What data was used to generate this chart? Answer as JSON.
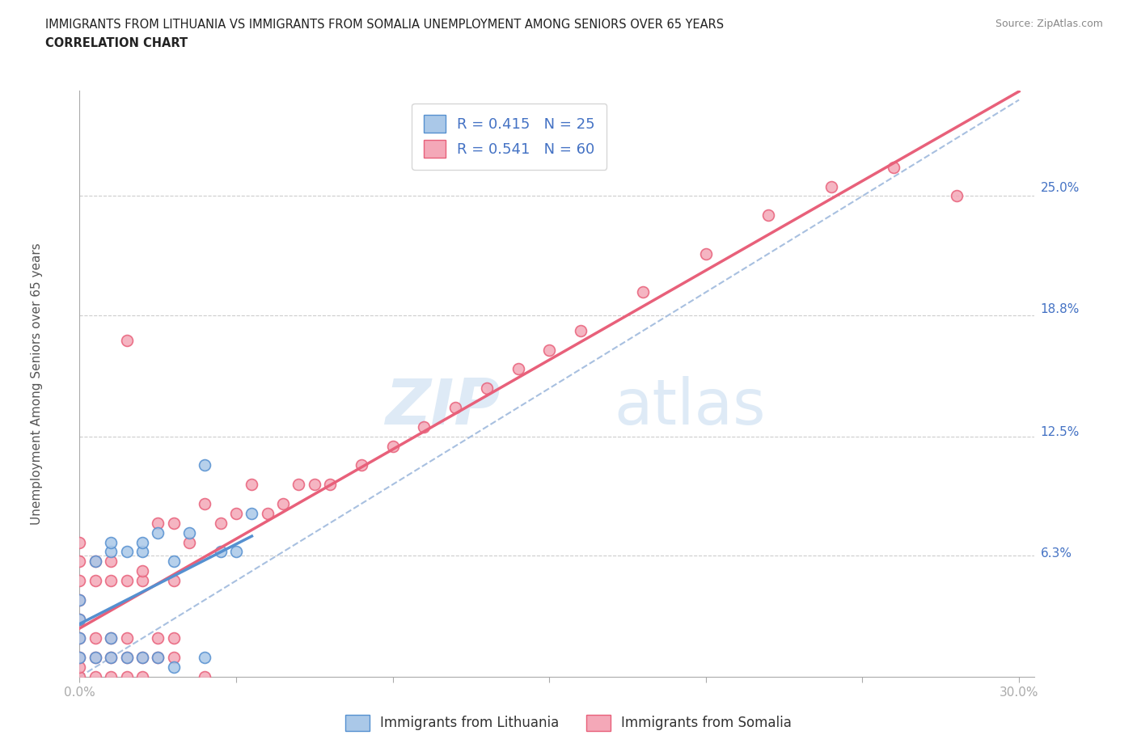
{
  "title_line1": "IMMIGRANTS FROM LITHUANIA VS IMMIGRANTS FROM SOMALIA UNEMPLOYMENT AMONG SENIORS OVER 65 YEARS",
  "title_line2": "CORRELATION CHART",
  "source": "Source: ZipAtlas.com",
  "ylabel": "Unemployment Among Seniors over 65 years",
  "xmin": 0.0,
  "xmax": 0.3,
  "ymin": 0.0,
  "ymax": 0.3,
  "r_lithuania": 0.415,
  "n_lithuania": 25,
  "r_somalia": 0.541,
  "n_somalia": 60,
  "color_lithuania": "#aac8e8",
  "color_somalia": "#f4a8b8",
  "line_color_lithuania": "#5590d0",
  "line_color_somalia": "#e8607a",
  "diag_color": "#a8c0e0",
  "lithuania_x": [
    0.0,
    0.0,
    0.0,
    0.0,
    0.005,
    0.005,
    0.01,
    0.01,
    0.01,
    0.01,
    0.015,
    0.015,
    0.02,
    0.02,
    0.02,
    0.025,
    0.025,
    0.03,
    0.03,
    0.035,
    0.04,
    0.04,
    0.045,
    0.05,
    0.055
  ],
  "lithuania_y": [
    0.01,
    0.02,
    0.03,
    0.04,
    0.01,
    0.06,
    0.01,
    0.02,
    0.065,
    0.07,
    0.01,
    0.065,
    0.01,
    0.065,
    0.07,
    0.01,
    0.075,
    0.005,
    0.06,
    0.075,
    0.01,
    0.11,
    0.065,
    0.065,
    0.085
  ],
  "somalia_x": [
    0.0,
    0.0,
    0.0,
    0.0,
    0.0,
    0.0,
    0.0,
    0.0,
    0.0,
    0.005,
    0.005,
    0.005,
    0.005,
    0.005,
    0.01,
    0.01,
    0.01,
    0.01,
    0.01,
    0.015,
    0.015,
    0.015,
    0.015,
    0.015,
    0.02,
    0.02,
    0.02,
    0.02,
    0.025,
    0.025,
    0.025,
    0.03,
    0.03,
    0.03,
    0.03,
    0.035,
    0.04,
    0.04,
    0.045,
    0.05,
    0.055,
    0.06,
    0.065,
    0.07,
    0.075,
    0.08,
    0.09,
    0.1,
    0.11,
    0.12,
    0.13,
    0.14,
    0.15,
    0.16,
    0.18,
    0.2,
    0.22,
    0.24,
    0.26,
    0.28
  ],
  "somalia_y": [
    0.0,
    0.005,
    0.01,
    0.02,
    0.03,
    0.04,
    0.05,
    0.06,
    0.07,
    0.0,
    0.01,
    0.02,
    0.05,
    0.06,
    0.0,
    0.01,
    0.02,
    0.05,
    0.06,
    0.0,
    0.01,
    0.02,
    0.05,
    0.175,
    0.0,
    0.01,
    0.05,
    0.055,
    0.01,
    0.02,
    0.08,
    0.01,
    0.02,
    0.05,
    0.08,
    0.07,
    0.0,
    0.09,
    0.08,
    0.085,
    0.1,
    0.085,
    0.09,
    0.1,
    0.1,
    0.1,
    0.11,
    0.12,
    0.13,
    0.14,
    0.15,
    0.16,
    0.17,
    0.18,
    0.2,
    0.22,
    0.24,
    0.255,
    0.265,
    0.25
  ]
}
